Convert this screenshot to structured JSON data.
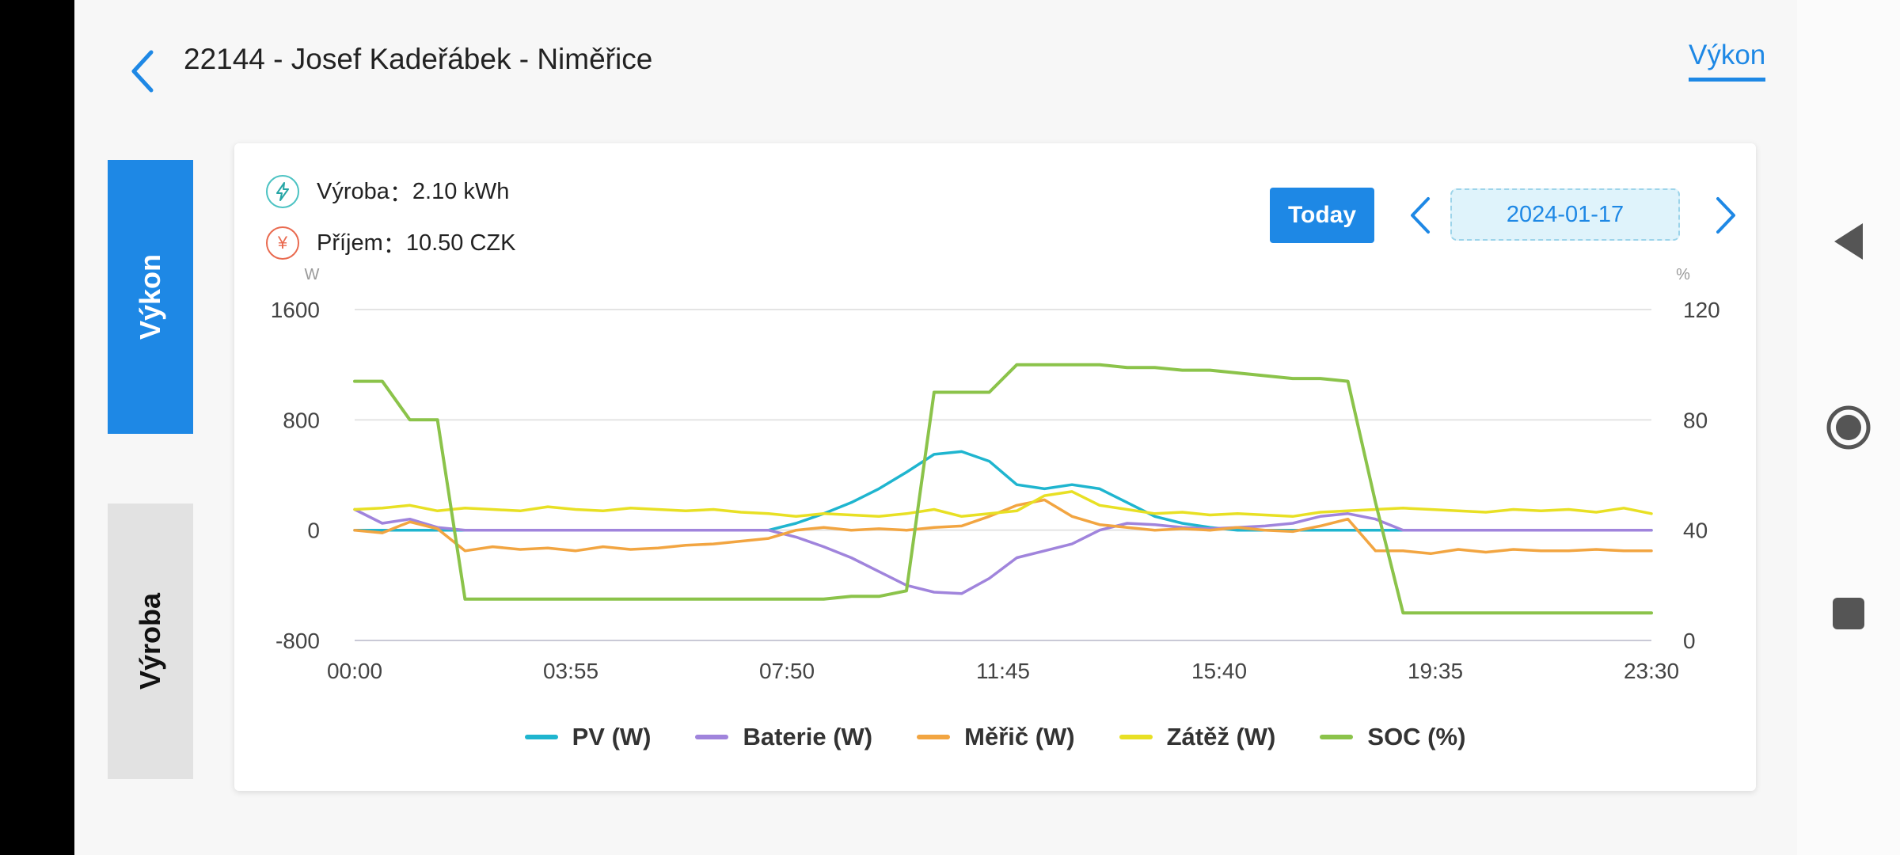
{
  "header": {
    "title": "22144 - Josef Kadeřábek - Niměřice",
    "top_tab": "Výkon"
  },
  "side_tabs": [
    {
      "label": "Výkon",
      "active": true
    },
    {
      "label": "Výroba",
      "active": false
    }
  ],
  "stats": {
    "production_label": "Výroba",
    "production_value": "2.10 kWh",
    "income_label": "Příjem",
    "income_value": "10.50 CZK",
    "sep": "："
  },
  "date_nav": {
    "today_label": "Today",
    "date": "2024-01-17"
  },
  "icons": {
    "back": "chevron-left-icon",
    "prev": "chevron-left-icon",
    "next": "chevron-right-icon",
    "production": "lightning-icon",
    "income": "yen-icon",
    "nav_back": "triangle-left-icon",
    "nav_home": "circle-home-icon",
    "nav_recent": "square-recent-icon"
  },
  "colors": {
    "accent": "#1e88e5",
    "pv": "#1fb5cf",
    "battery": "#a084dc",
    "meter": "#f2a541",
    "load": "#e8e024",
    "soc": "#8bc34a"
  },
  "chart_data": {
    "type": "line",
    "x": [
      "00:00",
      "00:30",
      "01:00",
      "01:30",
      "02:00",
      "02:30",
      "03:00",
      "03:30",
      "04:00",
      "04:30",
      "05:00",
      "05:30",
      "06:00",
      "06:30",
      "07:00",
      "07:30",
      "08:00",
      "08:30",
      "09:00",
      "09:30",
      "10:00",
      "10:30",
      "11:00",
      "11:30",
      "12:00",
      "12:30",
      "13:00",
      "13:30",
      "14:00",
      "14:30",
      "15:00",
      "15:30",
      "16:00",
      "16:30",
      "17:00",
      "17:30",
      "18:00",
      "18:30",
      "19:00",
      "19:30",
      "20:00",
      "20:30",
      "21:00",
      "21:30",
      "22:00",
      "22:30",
      "23:00",
      "23:30"
    ],
    "x_ticks": [
      "00:00",
      "03:55",
      "07:50",
      "11:45",
      "15:40",
      "19:35",
      "23:30"
    ],
    "y_left": {
      "unit": "W",
      "range": [
        -800,
        1600
      ],
      "ticks": [
        "1600",
        "800",
        "0",
        "-800"
      ]
    },
    "y_right": {
      "unit": "%",
      "range": [
        0,
        120
      ],
      "ticks": [
        "120",
        "80",
        "40",
        "0"
      ]
    },
    "grid": true,
    "legend_position": "bottom",
    "series": [
      {
        "name": "PV (W)",
        "axis": "left",
        "color": "#1fb5cf",
        "values": [
          0,
          0,
          0,
          0,
          0,
          0,
          0,
          0,
          0,
          0,
          0,
          0,
          0,
          0,
          0,
          0,
          50,
          120,
          200,
          300,
          420,
          550,
          570,
          500,
          330,
          300,
          330,
          300,
          200,
          100,
          50,
          20,
          0,
          0,
          0,
          0,
          0,
          0,
          0,
          0,
          0,
          0,
          0,
          0,
          0,
          0,
          0,
          0
        ]
      },
      {
        "name": "Baterie (W)",
        "axis": "left",
        "color": "#a084dc",
        "values": [
          150,
          50,
          80,
          20,
          0,
          0,
          0,
          0,
          0,
          0,
          0,
          0,
          0,
          0,
          0,
          0,
          -50,
          -120,
          -200,
          -300,
          -400,
          -450,
          -460,
          -350,
          -200,
          -150,
          -100,
          0,
          50,
          40,
          20,
          10,
          20,
          30,
          50,
          100,
          120,
          80,
          0,
          0,
          0,
          0,
          0,
          0,
          0,
          0,
          0,
          0
        ]
      },
      {
        "name": "Měřič (W)",
        "axis": "left",
        "color": "#f2a541",
        "values": [
          0,
          -20,
          60,
          10,
          -150,
          -120,
          -140,
          -130,
          -150,
          -120,
          -140,
          -130,
          -110,
          -100,
          -80,
          -60,
          0,
          20,
          0,
          10,
          0,
          20,
          30,
          100,
          180,
          220,
          100,
          40,
          20,
          0,
          10,
          0,
          20,
          0,
          -10,
          30,
          80,
          -150,
          -150,
          -170,
          -140,
          -160,
          -140,
          -150,
          -150,
          -140,
          -150,
          -150
        ]
      },
      {
        "name": "Zátěž (W)",
        "axis": "left",
        "color": "#e8e024",
        "values": [
          150,
          160,
          180,
          140,
          160,
          150,
          140,
          170,
          150,
          140,
          160,
          150,
          140,
          150,
          130,
          120,
          100,
          120,
          110,
          100,
          120,
          150,
          100,
          120,
          140,
          250,
          280,
          180,
          150,
          120,
          130,
          110,
          120,
          110,
          100,
          130,
          140,
          150,
          160,
          150,
          140,
          130,
          150,
          140,
          150,
          130,
          160,
          120
        ]
      },
      {
        "name": "SOC (%)",
        "axis": "right",
        "color": "#8bc34a",
        "values": [
          94,
          94,
          80,
          80,
          15,
          15,
          15,
          15,
          15,
          15,
          15,
          15,
          15,
          15,
          15,
          15,
          15,
          15,
          16,
          16,
          18,
          90,
          90,
          90,
          100,
          100,
          100,
          100,
          99,
          99,
          98,
          98,
          97,
          96,
          95,
          95,
          94,
          50,
          10,
          10,
          10,
          10,
          10,
          10,
          10,
          10,
          10,
          10
        ]
      }
    ]
  }
}
